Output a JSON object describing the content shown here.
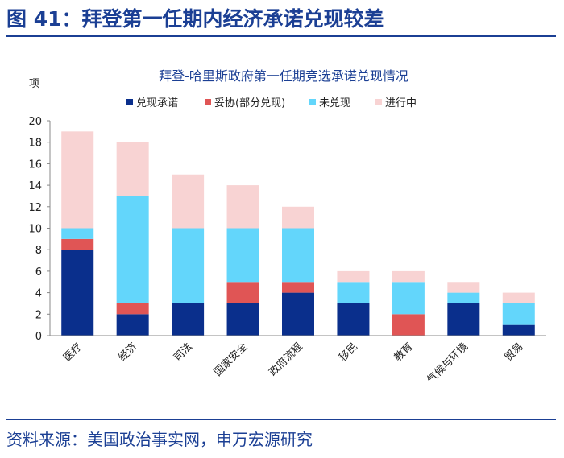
{
  "figure_title": "图 41：拜登第一任期内经济承诺兑现较差",
  "source_note": "资料来源：美国政治事实网，申万宏源研究",
  "chart_data": {
    "type": "bar",
    "stacked": true,
    "title": "拜登-哈里斯政府第一任期竞选承诺兑现情况",
    "ylabel": "项",
    "xlabel": "",
    "ylim": [
      0,
      20
    ],
    "yticks": [
      0,
      2,
      4,
      6,
      8,
      10,
      12,
      14,
      16,
      18,
      20
    ],
    "grid": false,
    "legend_position": "top",
    "categories": [
      "医疗",
      "经济",
      "司法",
      "国家安全",
      "政府流程",
      "移民",
      "教育",
      "气候与环境",
      "贸易"
    ],
    "series": [
      {
        "name": "兑现承诺",
        "color": "#0a2f8c",
        "values": [
          8,
          2,
          3,
          3,
          4,
          3,
          0,
          3,
          1
        ]
      },
      {
        "name": "妥协(部分兑现)",
        "color": "#e05555",
        "values": [
          1,
          1,
          0,
          2,
          1,
          0,
          2,
          0,
          0
        ]
      },
      {
        "name": "未兑现",
        "color": "#63d6fb",
        "values": [
          1,
          10,
          7,
          5,
          5,
          2,
          3,
          1,
          2
        ]
      },
      {
        "name": "进行中",
        "color": "#f8d3d3",
        "values": [
          9,
          5,
          5,
          4,
          2,
          1,
          1,
          1,
          1
        ]
      }
    ]
  }
}
